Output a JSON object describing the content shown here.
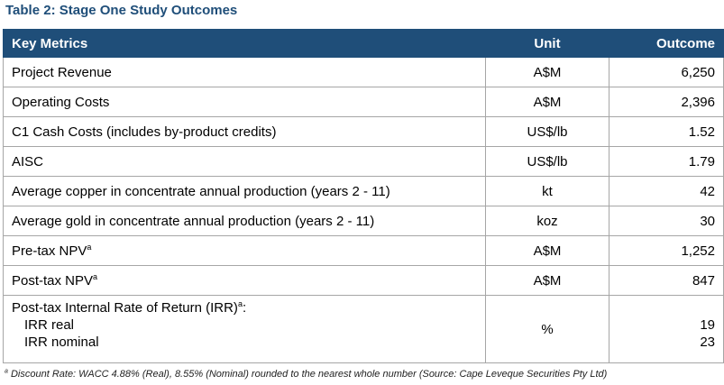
{
  "title": "Table 2: Stage One Study Outcomes",
  "headers": {
    "metric": "Key Metrics",
    "unit": "Unit",
    "outcome": "Outcome"
  },
  "rows": [
    {
      "metric": "Project Revenue",
      "unit": "A$M",
      "outcome": "6,250"
    },
    {
      "metric": "Operating Costs",
      "unit": "A$M",
      "outcome": "2,396"
    },
    {
      "metric": "C1 Cash Costs (includes by-product credits)",
      "unit": "US$/lb",
      "outcome": "1.52"
    },
    {
      "metric": "AISC",
      "unit": "US$/lb",
      "outcome": "1.79"
    },
    {
      "metric": "Average copper in concentrate annual production (years 2 - 11)",
      "unit": "kt",
      "outcome": "42"
    },
    {
      "metric": "Average gold in concentrate annual production (years 2 - 11)",
      "unit": "koz",
      "outcome": "30"
    },
    {
      "metric": "Pre-tax NPV",
      "sup": "a",
      "unit": "A$M",
      "outcome": "1,252"
    },
    {
      "metric": "Post-tax NPV",
      "sup": "a",
      "unit": "A$M",
      "outcome": "847"
    }
  ],
  "irr": {
    "metric": "Post-tax Internal Rate of Return (IRR)",
    "sup": "a",
    "suffix": ":",
    "unit": "%",
    "sub_rows": [
      {
        "label": "IRR real",
        "outcome": "19"
      },
      {
        "label": "IRR nominal",
        "outcome": "23"
      }
    ]
  },
  "footnote": {
    "marker": "a",
    "text": "Discount Rate: WACC 4.88% (Real), 8.55% (Nominal) rounded to the nearest whole number (Source: Cape Leveque Securities Pty Ltd)"
  }
}
